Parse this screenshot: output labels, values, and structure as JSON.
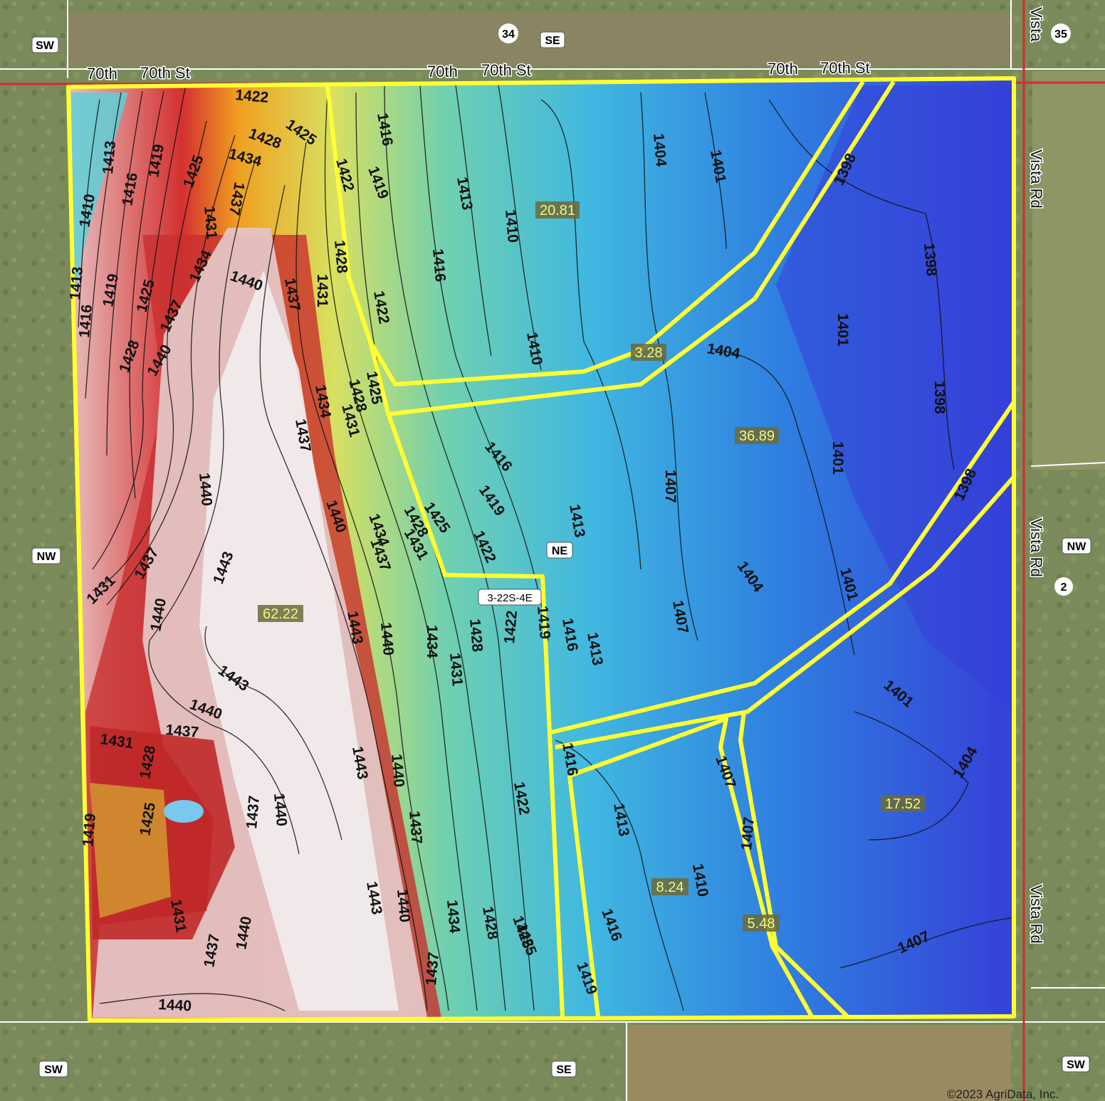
{
  "road_labels": {
    "top_1": "70th",
    "top_2": "70th St",
    "top_3": "70th",
    "top_4": "70th St",
    "top_5": "70th",
    "top_6": "70th St",
    "right_1": "Vista",
    "right_2": "Vista Rd",
    "right_3": "Vista Rd",
    "right_4": "Vista Rd"
  },
  "section_labels": {
    "sw_top_left": "SW",
    "num_34": "34",
    "se_top": "SE",
    "num_35": "35",
    "nw_left": "NW",
    "ne_center": "NE",
    "township": "3-22S-4E",
    "nw_right": "NW",
    "num_2": "2",
    "sw_bottom_left": "SW",
    "se_bottom": "SE",
    "sw_bottom_right": "SW"
  },
  "fields": [
    {
      "acres": "62.22"
    },
    {
      "acres": "20.81"
    },
    {
      "acres": "3.28"
    },
    {
      "acres": "36.89"
    },
    {
      "acres": "17.52"
    },
    {
      "acres": "8.24"
    },
    {
      "acres": "5.48"
    }
  ],
  "contours": [
    "1422",
    "1425",
    "1428",
    "1434",
    "1437",
    "1413",
    "1416",
    "1419",
    "1425",
    "1410",
    "1431",
    "1413",
    "1419",
    "1425",
    "1416",
    "1434",
    "1437",
    "1428",
    "1440",
    "1440",
    "1416",
    "1419",
    "1413",
    "1410",
    "1416",
    "1422",
    "1428",
    "1431",
    "1437",
    "1422",
    "1404",
    "1401",
    "1398",
    "1398",
    "1404",
    "1401",
    "1398",
    "1401",
    "1398",
    "1410",
    "1425",
    "1434",
    "1431",
    "1428",
    "1437",
    "1416",
    "1413",
    "1407",
    "1404",
    "1401",
    "1419",
    "1425",
    "1422",
    "1431",
    "1428",
    "1434",
    "1440",
    "1443",
    "1443",
    "1437",
    "1431",
    "1440",
    "1437",
    "1440",
    "1443",
    "1440",
    "1437",
    "1443",
    "1440",
    "1434",
    "1431",
    "1428",
    "1422",
    "1419",
    "1416",
    "1413",
    "1407",
    "1407",
    "1401",
    "1404",
    "1431",
    "1437",
    "1428",
    "1425",
    "1419",
    "1437",
    "1440",
    "1431",
    "1437",
    "1440",
    "1443",
    "1440",
    "1437",
    "1434",
    "1428",
    "1425",
    "1419",
    "1416",
    "1413",
    "1410",
    "1407",
    "1407",
    "1440",
    "1422",
    "1425",
    "1404",
    "1407",
    "1437",
    "1440",
    "1443",
    "1440",
    "1434",
    "1431",
    "1428",
    "1416",
    "1419",
    "1422",
    "1413"
  ],
  "colors": {
    "boundary": "#ffff33",
    "road_line": "#d62b2b",
    "acre_bg": "#6b6b3a",
    "acre_text": "#f5f580"
  },
  "copyright": "©2023 AgriData, Inc."
}
